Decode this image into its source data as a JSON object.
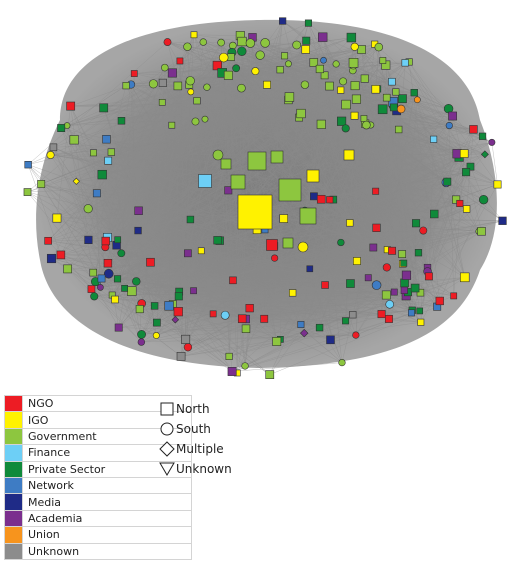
{
  "legend": {
    "colors": [
      {
        "label": "NGO",
        "color": "#ed1c24"
      },
      {
        "label": "IGO",
        "color": "#fff200"
      },
      {
        "label": "Government",
        "color": "#8dc63f"
      },
      {
        "label": "Finance",
        "color": "#6dcff6"
      },
      {
        "label": "Private Sector",
        "color": "#0f8a3a"
      },
      {
        "label": "Network",
        "color": "#3e7cc4"
      },
      {
        "label": "Media",
        "color": "#1f2b87"
      },
      {
        "label": "Academia",
        "color": "#7b2f8e"
      },
      {
        "label": "Union",
        "color": "#f7941d"
      },
      {
        "label": "Unknown",
        "color": "#8c8c8c"
      }
    ],
    "shapes": [
      {
        "label": "North",
        "shape": "square"
      },
      {
        "label": "South",
        "shape": "circle"
      },
      {
        "label": "Multiple",
        "shape": "diamond"
      },
      {
        "label": "Unknown",
        "shape": "triangle-down"
      }
    ]
  }
}
